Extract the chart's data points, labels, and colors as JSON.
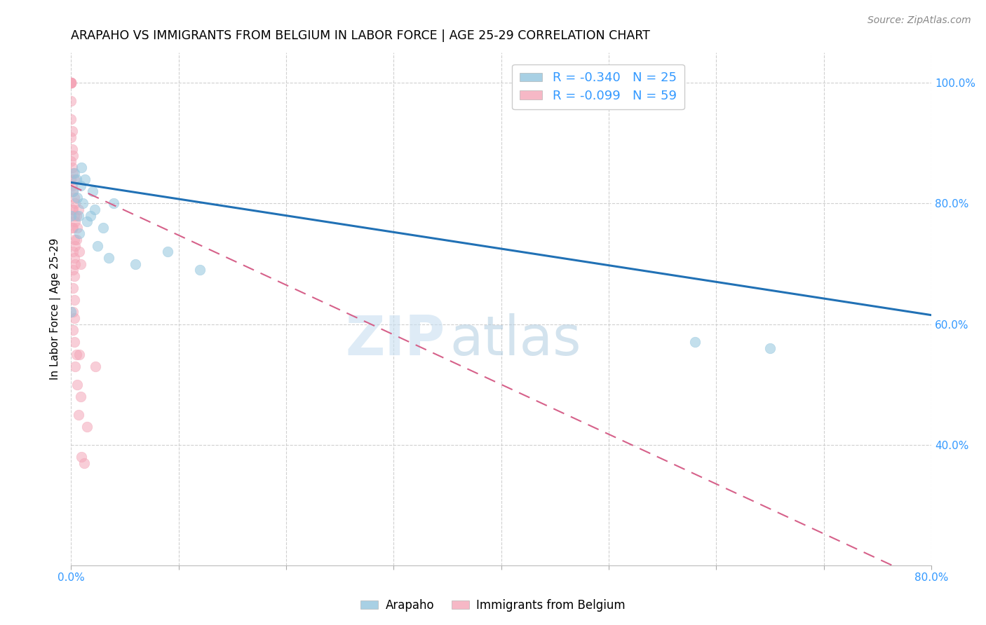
{
  "title": "ARAPAHO VS IMMIGRANTS FROM BELGIUM IN LABOR FORCE | AGE 25-29 CORRELATION CHART",
  "source": "Source: ZipAtlas.com",
  "ylabel": "In Labor Force | Age 25-29",
  "xlim": [
    0.0,
    0.8
  ],
  "ylim": [
    0.2,
    1.05
  ],
  "blue_color": "#92c5de",
  "pink_color": "#f4a6b8",
  "trendline_blue": "#2171b5",
  "trendline_pink": "#d6618a",
  "watermark_zip": "ZIP",
  "watermark_atlas": "atlas",
  "legend_r1": "-0.340",
  "legend_n1": "25",
  "legend_r2": "-0.099",
  "legend_n2": "59",
  "arapaho_x": [
    0.0,
    0.0,
    0.002,
    0.003,
    0.005,
    0.006,
    0.007,
    0.008,
    0.009,
    0.01,
    0.011,
    0.013,
    0.015,
    0.018,
    0.02,
    0.022,
    0.025,
    0.03,
    0.035,
    0.04,
    0.06,
    0.09,
    0.12,
    0.58,
    0.65
  ],
  "arapaho_y": [
    0.78,
    0.62,
    0.82,
    0.85,
    0.84,
    0.81,
    0.78,
    0.75,
    0.83,
    0.86,
    0.8,
    0.84,
    0.77,
    0.78,
    0.82,
    0.79,
    0.73,
    0.76,
    0.71,
    0.8,
    0.7,
    0.72,
    0.69,
    0.57,
    0.56
  ],
  "belgium_x": [
    0.0,
    0.0,
    0.0,
    0.0,
    0.0,
    0.0,
    0.0,
    0.0,
    0.0,
    0.0,
    0.0,
    0.0,
    0.0,
    0.0,
    0.001,
    0.001,
    0.001,
    0.001,
    0.001,
    0.001,
    0.002,
    0.002,
    0.002,
    0.002,
    0.002,
    0.002,
    0.002,
    0.002,
    0.002,
    0.002,
    0.003,
    0.003,
    0.003,
    0.003,
    0.003,
    0.003,
    0.003,
    0.003,
    0.003,
    0.004,
    0.004,
    0.004,
    0.004,
    0.004,
    0.005,
    0.005,
    0.005,
    0.006,
    0.006,
    0.007,
    0.007,
    0.008,
    0.008,
    0.009,
    0.009,
    0.01,
    0.012,
    0.015,
    0.023
  ],
  "belgium_y": [
    1.0,
    1.0,
    1.0,
    1.0,
    1.0,
    1.0,
    1.0,
    1.0,
    1.0,
    0.97,
    0.94,
    0.91,
    0.87,
    0.84,
    0.92,
    0.89,
    0.86,
    0.83,
    0.79,
    0.76,
    0.88,
    0.85,
    0.82,
    0.79,
    0.76,
    0.72,
    0.69,
    0.66,
    0.62,
    0.59,
    0.84,
    0.81,
    0.78,
    0.74,
    0.71,
    0.68,
    0.64,
    0.61,
    0.57,
    0.8,
    0.77,
    0.73,
    0.7,
    0.53,
    0.78,
    0.74,
    0.55,
    0.76,
    0.5,
    0.79,
    0.45,
    0.72,
    0.55,
    0.7,
    0.48,
    0.38,
    0.37,
    0.43,
    0.53
  ],
  "trendline_blue_pts": [
    [
      0.0,
      0.835
    ],
    [
      0.8,
      0.615
    ]
  ],
  "trendline_pink_pts": [
    [
      0.0,
      0.83
    ],
    [
      0.8,
      0.17
    ]
  ]
}
